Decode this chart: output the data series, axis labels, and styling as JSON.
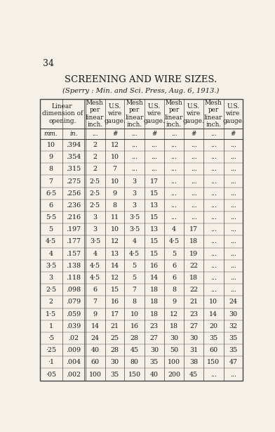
{
  "page_number": "34",
  "title": "SCREENING AND WIRE SIZES.",
  "subtitle": "(Sperry : Min. and Sci. Press, Aug. 6, 1913.)",
  "sub_headers": [
    "mm.",
    "in.",
    "...",
    "#",
    "...",
    "#",
    "...",
    "#",
    "...",
    "#"
  ],
  "rows": [
    [
      "10",
      ".394",
      "2",
      "12",
      "...",
      "...",
      "...",
      "...",
      "...",
      "..."
    ],
    [
      "9",
      ".354",
      "2",
      "10",
      "...",
      "...",
      "...",
      "...",
      "...",
      "..."
    ],
    [
      "8",
      ".315",
      "2",
      "7",
      "...",
      "...",
      "...",
      "...",
      "...",
      "..."
    ],
    [
      "7",
      ".275",
      "2·5",
      "10",
      "3",
      "17",
      "...",
      "...",
      "...",
      "..."
    ],
    [
      "6·5",
      ".256",
      "2·5",
      "9",
      "3",
      "15",
      "...",
      "...",
      "...",
      "..."
    ],
    [
      "6",
      ".236",
      "2·5",
      "8",
      "3",
      "13",
      "...",
      "...",
      "...",
      "..."
    ],
    [
      "5·5",
      ".216",
      "3",
      "11",
      "3·5",
      "15",
      "...",
      "...",
      "...",
      "..."
    ],
    [
      "5",
      ".197",
      "3",
      "10",
      "3·5",
      "13",
      "4",
      "17",
      "...",
      "..."
    ],
    [
      "4·5",
      ".177",
      "3·5",
      "12",
      "4",
      "15",
      "4·5",
      "18",
      "...",
      "..."
    ],
    [
      "4",
      ".157",
      "4",
      "13",
      "4·5",
      "15",
      "5",
      "19",
      "...",
      "..."
    ],
    [
      "3·5",
      ".138",
      "4·5",
      "14",
      "5",
      "16",
      "6",
      "22",
      "...",
      "..."
    ],
    [
      "3",
      ".118",
      "4·5",
      "12",
      "5",
      "14",
      "6",
      "18",
      "...",
      "..."
    ],
    [
      "2·5",
      ".098",
      "6",
      "15",
      "7",
      "18",
      "8",
      "22",
      "...",
      "..."
    ],
    [
      "2",
      ".079",
      "7",
      "16",
      "8",
      "18",
      "9",
      "21",
      "10",
      "24"
    ],
    [
      "1·5",
      ".059",
      "9",
      "17",
      "10",
      "18",
      "12",
      "23",
      "14",
      "30"
    ],
    [
      "1",
      ".039",
      "14",
      "21",
      "16",
      "23",
      "18",
      "27",
      "20",
      "32"
    ],
    [
      "·5",
      ".02",
      "24",
      "25",
      "28",
      "27",
      "30",
      "30",
      "35",
      "35"
    ],
    [
      "·25",
      ".009",
      "40",
      "28",
      "45",
      "30",
      "50",
      "31",
      "60",
      "35"
    ],
    [
      "·1",
      ".004",
      "60",
      "30",
      "80",
      "35",
      "100",
      "38",
      "150",
      "47"
    ],
    [
      "·05",
      ".002",
      "100",
      "35",
      "150",
      "40",
      "200",
      "45",
      "...",
      "..."
    ]
  ],
  "bg_color": "#f5f0e8",
  "text_color": "#1a1a1a",
  "border_color": "#444444"
}
